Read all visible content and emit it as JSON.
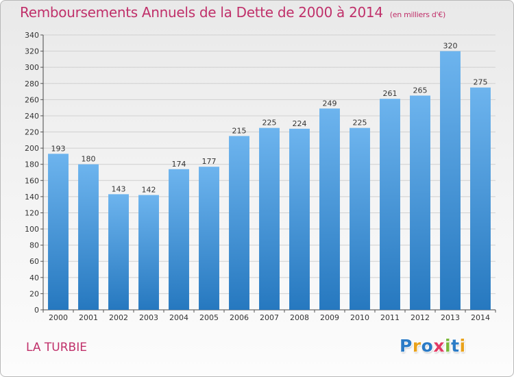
{
  "header": {
    "title": "Remboursements Annuels de la Dette de 2000 à 2014",
    "unit": "(en milliers d'€)"
  },
  "footer": {
    "commune": "LA TURBIE",
    "logo_text": "Proxiti",
    "logo_letters": [
      {
        "char": "P",
        "color": "#2b7bc6"
      },
      {
        "char": "r",
        "color": "#e9a21b"
      },
      {
        "char": "o",
        "color": "#2b7bc6"
      },
      {
        "char": "x",
        "color": "#e23a64"
      },
      {
        "char": "i",
        "color": "#7ab83a"
      },
      {
        "char": "t",
        "color": "#2b7bc6"
      },
      {
        "char": "i",
        "color": "#e9a21b"
      }
    ]
  },
  "colors": {
    "bar_light": "#6db4ee",
    "bar_dark": "#2678bf",
    "title": "#c0306a",
    "grid": "#d0d0d0"
  },
  "chart_data": {
    "type": "bar",
    "title": "Remboursements Annuels de la Dette de 2000 à 2014",
    "ylabel": "en milliers d'€",
    "xlabel": "",
    "categories": [
      "2000",
      "2001",
      "2002",
      "2003",
      "2004",
      "2005",
      "2006",
      "2007",
      "2008",
      "2009",
      "2010",
      "2011",
      "2012",
      "2013",
      "2014"
    ],
    "values": [
      193,
      180,
      143,
      142,
      174,
      177,
      215,
      225,
      224,
      249,
      225,
      261,
      265,
      320,
      275
    ],
    "ylim": [
      0,
      340
    ],
    "yticks": [
      0,
      20,
      40,
      60,
      80,
      100,
      120,
      140,
      160,
      180,
      200,
      220,
      240,
      260,
      280,
      300,
      320,
      340
    ],
    "grid": true
  }
}
